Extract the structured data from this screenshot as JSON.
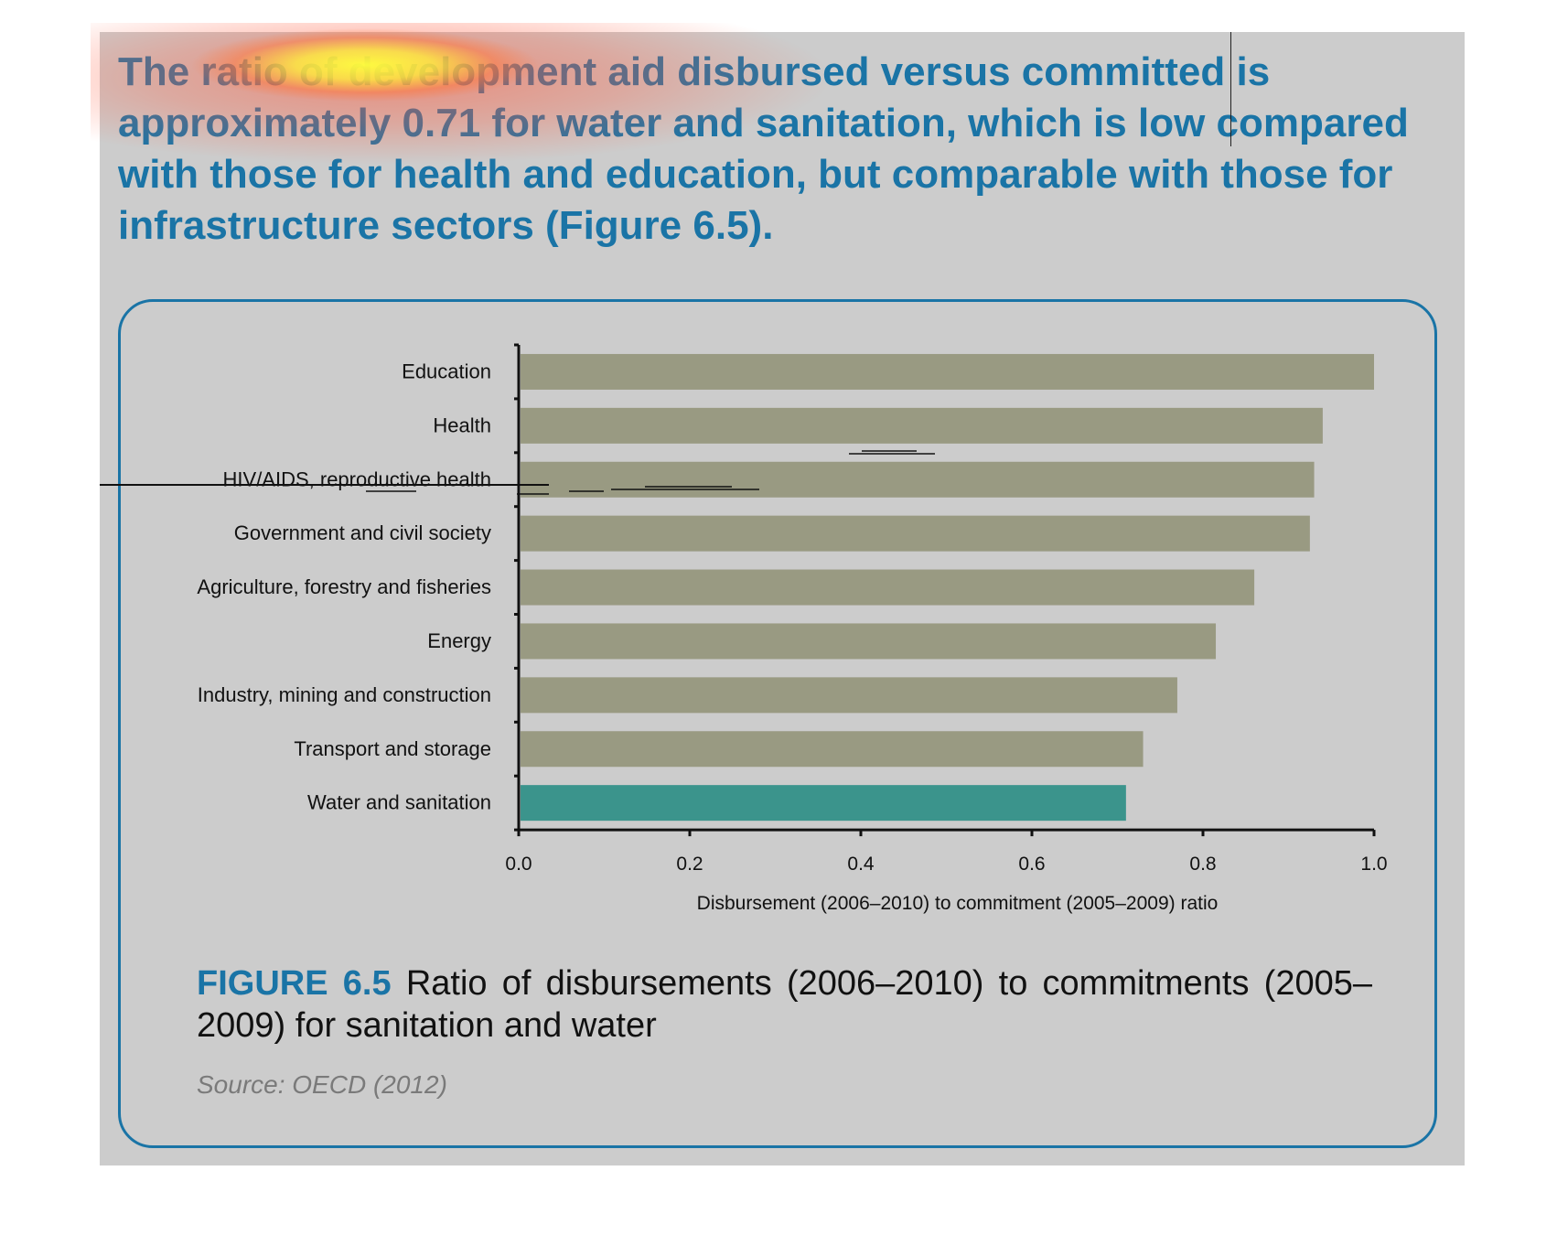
{
  "headline": "The ratio of development aid disbursed versus committed is approximately 0.71 for water and sanitation, which is low compared with those for health and education, but comparable with those for infrastructure sectors (Figure 6.5).",
  "figure": {
    "label": "FIGURE 6.5",
    "caption": "Ratio of disbursements (2006–2010) to commitments (2005–2009) for sanitation and water",
    "source": "Source: OECD (2012)"
  },
  "colors": {
    "panel": "#cccccc",
    "accent_blue": "#1a74a6",
    "bar_default": "#999a82",
    "bar_highlight": "#3b948c"
  },
  "chart_data": {
    "type": "bar",
    "orientation": "horizontal",
    "categories": [
      "Education",
      "Health",
      "HIV/AIDS, reproductive health",
      "Government and civil society",
      "Agriculture, forestry and fisheries",
      "Energy",
      "Industry, mining and construction",
      "Transport and storage",
      "Water and sanitation"
    ],
    "values": [
      1.0,
      0.94,
      0.93,
      0.925,
      0.86,
      0.815,
      0.77,
      0.73,
      0.71
    ],
    "highlight": "Water and sanitation",
    "xlabel": "Disbursement (2006–2010) to commitment (2005–2009) ratio",
    "ylabel": "",
    "xlim": [
      0,
      1.0
    ],
    "xticks": [
      "0.0",
      "0.2",
      "0.4",
      "0.6",
      "0.8",
      "1.0"
    ],
    "grid": false,
    "legend": "none"
  }
}
